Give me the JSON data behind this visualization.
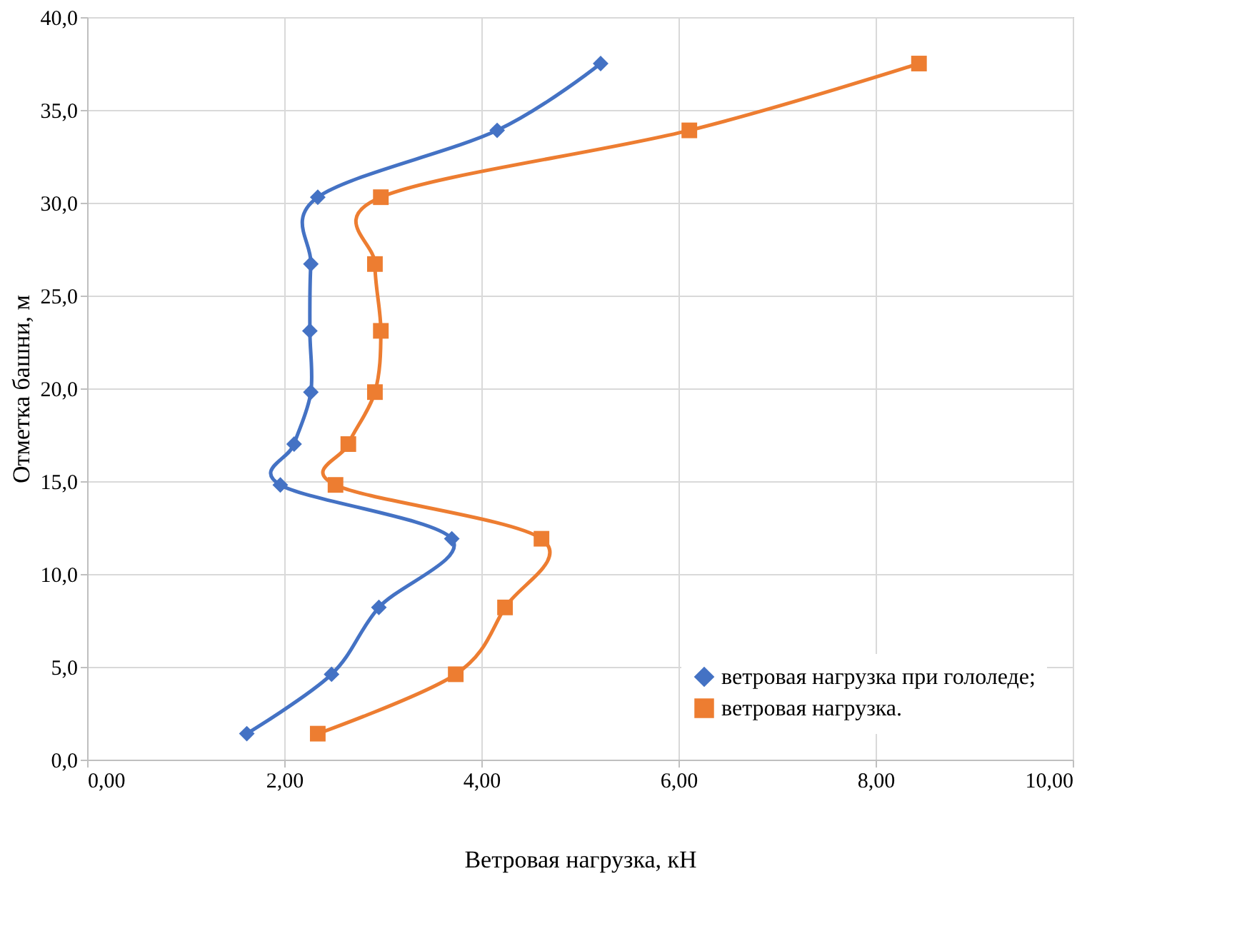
{
  "chart_data": {
    "type": "line",
    "xlabel": "Ветровая нагрузка, кН",
    "ylabel": "Отметка башни, м",
    "xlim": [
      0,
      10
    ],
    "ylim": [
      0,
      40
    ],
    "xticks": [
      {
        "value": 0,
        "label": "0,00"
      },
      {
        "value": 2,
        "label": "2,00"
      },
      {
        "value": 4,
        "label": "4,00"
      },
      {
        "value": 6,
        "label": "6,00"
      },
      {
        "value": 8,
        "label": "8,00"
      },
      {
        "value": 10,
        "label": "10,00"
      }
    ],
    "yticks": [
      {
        "value": 0,
        "label": "0,0"
      },
      {
        "value": 5,
        "label": "5,0"
      },
      {
        "value": 10,
        "label": "10,0"
      },
      {
        "value": 15,
        "label": "15,0"
      },
      {
        "value": 20,
        "label": "20,0"
      },
      {
        "value": 25,
        "label": "25,0"
      },
      {
        "value": 30,
        "label": "30,0"
      },
      {
        "value": 35,
        "label": "35,0"
      },
      {
        "value": 40,
        "label": "40,0"
      }
    ],
    "grid": true,
    "legend": "bottom right",
    "line_style": "solid",
    "series": [
      {
        "name": "ветровая нагрузка при гололеде;",
        "color": "#4472c4",
        "marker": "diamond",
        "x": [
          1.62,
          2.48,
          2.96,
          3.7,
          1.96,
          2.1,
          2.27,
          2.26,
          2.27,
          2.34,
          4.16,
          5.21
        ],
        "values": [
          1.4,
          4.6,
          8.2,
          11.9,
          14.8,
          17.0,
          19.8,
          23.1,
          26.7,
          30.3,
          33.9,
          37.5
        ]
      },
      {
        "name": "ветровая нагрузка.",
        "color": "#ed7d31",
        "marker": "square",
        "x": [
          2.34,
          3.74,
          4.24,
          4.61,
          2.52,
          2.65,
          2.92,
          2.98,
          2.92,
          2.98,
          6.11,
          8.44
        ],
        "values": [
          1.4,
          4.6,
          8.2,
          11.9,
          14.8,
          17.0,
          19.8,
          23.1,
          26.7,
          30.3,
          33.9,
          37.5
        ]
      }
    ]
  }
}
